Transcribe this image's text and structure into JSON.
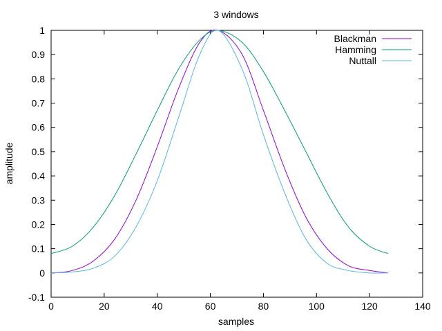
{
  "chart_data": {
    "type": "line",
    "title": "3 windows",
    "xlabel": "samples",
    "ylabel": "amplitude",
    "xlim": [
      0,
      140
    ],
    "ylim": [
      -0.1,
      1
    ],
    "x_ticks": [
      "0",
      "20",
      "40",
      "60",
      "80",
      "100",
      "120",
      "140"
    ],
    "y_ticks": [
      "-0.1",
      "0",
      "0.1",
      "0.2",
      "0.3",
      "0.4",
      "0.5",
      "0.6",
      "0.7",
      "0.8",
      "0.9",
      "1"
    ],
    "grid": false,
    "legend_position": "top-right",
    "x": [
      0,
      8,
      16,
      24,
      32,
      40,
      48,
      56,
      63,
      72,
      80,
      88,
      96,
      104,
      112,
      120,
      127
    ],
    "series": [
      {
        "name": "Blackman",
        "color": "#9400d3",
        "values": [
          0.0,
          0.01,
          0.05,
          0.14,
          0.3,
          0.52,
          0.76,
          0.95,
          1.0,
          0.9,
          0.67,
          0.43,
          0.23,
          0.1,
          0.03,
          0.01,
          0.0
        ]
      },
      {
        "name": "Hamming",
        "color": "#009e73",
        "values": [
          0.08,
          0.11,
          0.19,
          0.32,
          0.49,
          0.67,
          0.84,
          0.96,
          1.0,
          0.95,
          0.83,
          0.67,
          0.5,
          0.33,
          0.19,
          0.11,
          0.08
        ]
      },
      {
        "name": "Nuttall",
        "color": "#56b4e9",
        "values": [
          0.0,
          0.004,
          0.02,
          0.07,
          0.19,
          0.38,
          0.64,
          0.9,
          1.0,
          0.84,
          0.57,
          0.33,
          0.14,
          0.04,
          0.01,
          0.0,
          0.0
        ]
      }
    ]
  }
}
